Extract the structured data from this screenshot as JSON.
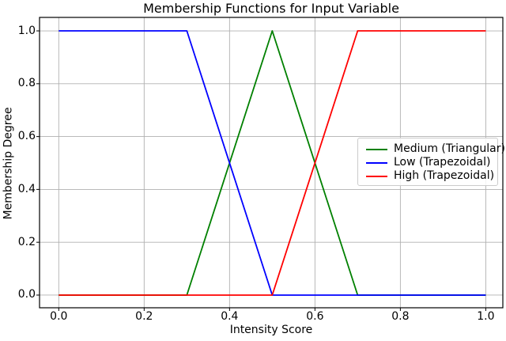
{
  "figure": {
    "background": "#ffffff"
  },
  "chart_data": {
    "type": "line",
    "title": "Membership Functions for Input Variable",
    "xlabel": "Intensity Score",
    "ylabel": "Membership Degree",
    "x_tick_labels": [
      "0.0",
      "0.2",
      "0.4",
      "0.6",
      "0.8",
      "1.0"
    ],
    "x_tick_values": [
      0.0,
      0.2,
      0.4,
      0.6,
      0.8,
      1.0
    ],
    "y_tick_labels": [
      "0.0",
      "0.2",
      "0.4",
      "0.6",
      "0.8",
      "1.0"
    ],
    "y_tick_values": [
      0.0,
      0.2,
      0.4,
      0.6,
      0.8,
      1.0
    ],
    "xlim": [
      -0.045,
      1.04
    ],
    "ylim": [
      -0.048,
      1.051
    ],
    "grid": true,
    "grid_color": "#b0b0b0",
    "spine_color": "#000000",
    "tick_color": "#000000",
    "legend_position": "center right",
    "series": [
      {
        "name": "Medium (Triangular)",
        "color": "#008000",
        "points": [
          [
            0.0,
            0.0
          ],
          [
            0.3,
            0.0
          ],
          [
            0.5,
            1.0
          ],
          [
            0.7,
            0.0
          ],
          [
            1.0,
            0.0
          ]
        ]
      },
      {
        "name": "Low (Trapezoidal)",
        "color": "#0000ff",
        "points": [
          [
            0.0,
            1.0
          ],
          [
            0.3,
            1.0
          ],
          [
            0.5,
            0.0
          ],
          [
            1.0,
            0.0
          ]
        ]
      },
      {
        "name": "High (Trapezoidal)",
        "color": "#ff0000",
        "points": [
          [
            0.0,
            0.0
          ],
          [
            0.5,
            0.0
          ],
          [
            0.7,
            1.0
          ],
          [
            1.0,
            1.0
          ]
        ]
      }
    ]
  }
}
